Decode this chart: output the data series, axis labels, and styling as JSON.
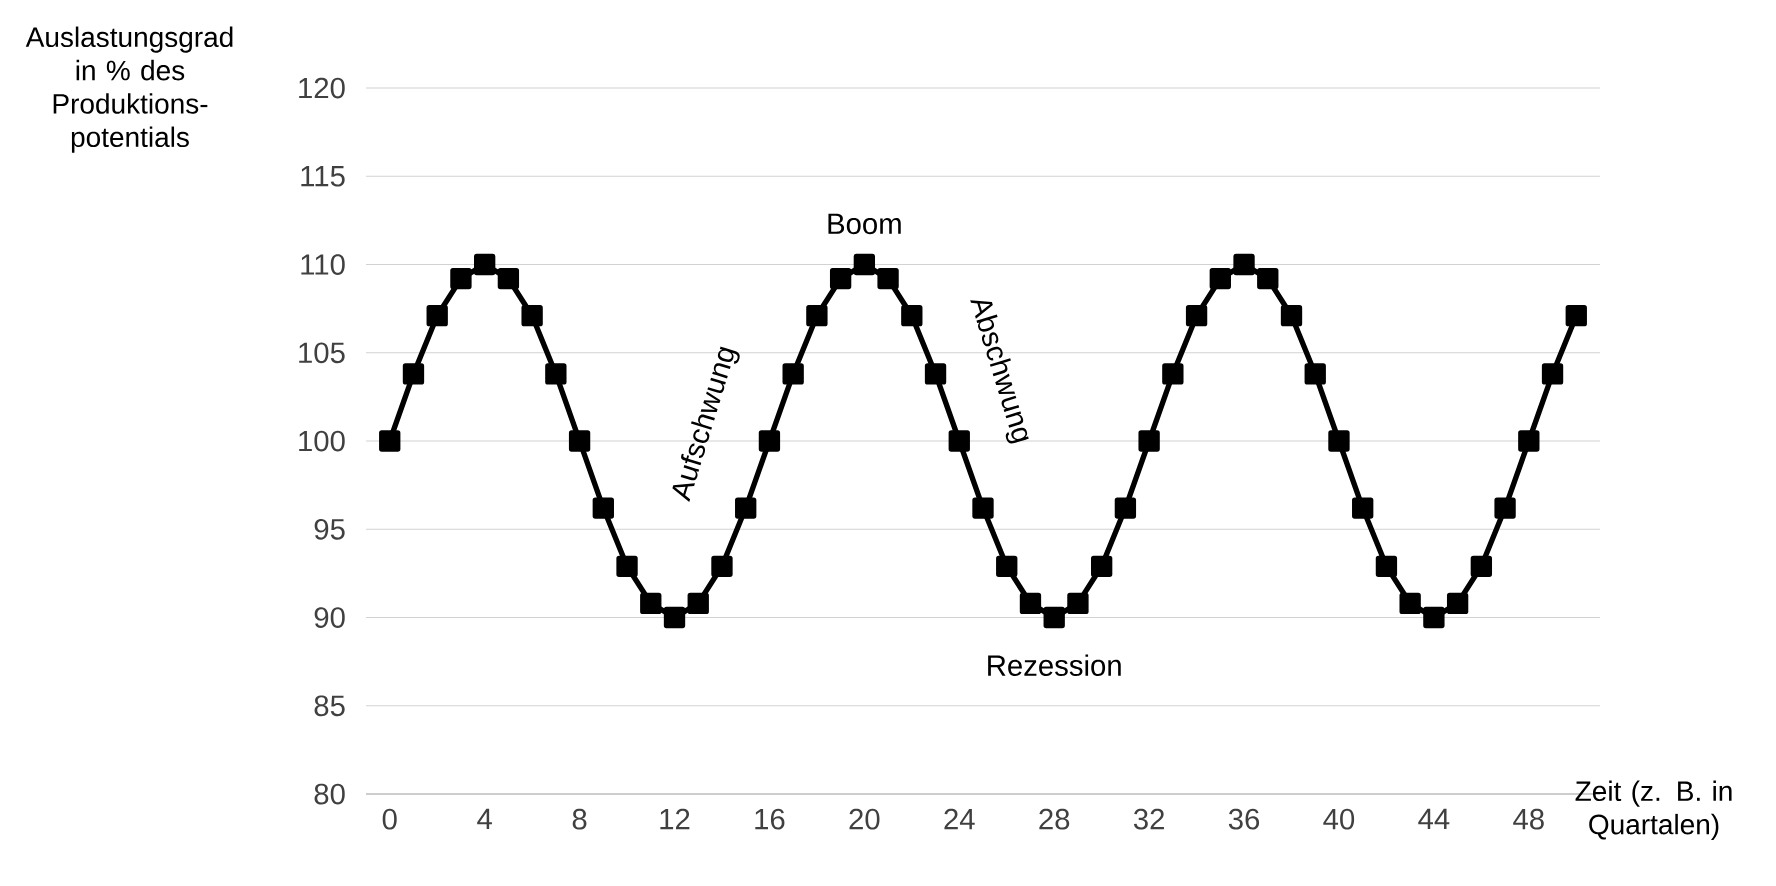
{
  "chart_data": {
    "type": "line",
    "ylabel": "Auslastungsgrad in % des Produktions- potentials",
    "xlabel": "Zeit (z. B. in Quartalen)",
    "x": [
      0,
      1,
      2,
      3,
      4,
      5,
      6,
      7,
      8,
      9,
      10,
      11,
      12,
      13,
      14,
      15,
      16,
      17,
      18,
      19,
      20,
      21,
      22,
      23,
      24,
      25,
      26,
      27,
      28,
      29,
      30,
      31,
      32,
      33,
      34,
      35,
      36,
      37,
      38,
      39,
      40,
      41,
      42,
      43,
      44,
      45,
      46,
      47,
      48,
      49,
      50
    ],
    "series": [
      {
        "color": "#000000",
        "values": [
          100,
          103.8,
          107.1,
          109.2,
          110,
          109.2,
          107.1,
          103.8,
          100,
          96.2,
          92.9,
          90.8,
          90,
          90.8,
          92.9,
          96.2,
          100,
          103.8,
          107.1,
          109.2,
          110,
          109.2,
          107.1,
          103.8,
          100,
          96.2,
          92.9,
          90.8,
          90,
          90.8,
          92.9,
          96.2,
          100,
          103.8,
          107.1,
          109.2,
          110,
          109.2,
          107.1,
          103.8,
          100,
          96.2,
          92.9,
          90.8,
          90,
          90.8,
          92.9,
          96.2,
          100,
          103.8,
          107.1
        ]
      }
    ],
    "xlim": [
      -1,
      51
    ],
    "ylim": [
      80,
      120
    ],
    "xticks": [
      0,
      4,
      8,
      12,
      16,
      20,
      24,
      28,
      32,
      36,
      40,
      44,
      48
    ],
    "yticks": [
      80,
      85,
      90,
      95,
      100,
      105,
      110,
      115,
      120
    ],
    "grid": "y",
    "marker": "square",
    "line_style": "solid",
    "annotations": [
      "Boom",
      "Rezession",
      "Aufschwung",
      "Abschwung"
    ]
  }
}
